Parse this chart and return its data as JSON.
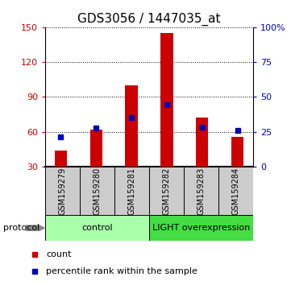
{
  "title": "GDS3056 / 1447035_at",
  "samples": [
    "GSM159279",
    "GSM159280",
    "GSM159281",
    "GSM159282",
    "GSM159283",
    "GSM159284"
  ],
  "red_values": [
    44,
    62,
    100,
    145,
    72,
    56
  ],
  "blue_values": [
    56,
    63,
    72,
    83,
    64,
    61
  ],
  "ylim_left": [
    30,
    150
  ],
  "ylim_right": [
    0,
    100
  ],
  "yticks_left": [
    30,
    60,
    90,
    120,
    150
  ],
  "yticks_right": [
    0,
    25,
    50,
    75,
    100
  ],
  "ytick_labels_right": [
    "0",
    "25",
    "50",
    "75",
    "100%"
  ],
  "groups": [
    {
      "label": "control",
      "start": 0,
      "end": 3,
      "color": "#AAFFAA"
    },
    {
      "label": "LIGHT overexpression",
      "start": 3,
      "end": 6,
      "color": "#44DD44"
    }
  ],
  "protocol_label": "protocol",
  "legend_red": "count",
  "legend_blue": "percentile rank within the sample",
  "red_color": "#CC0000",
  "blue_color": "#0000BB",
  "bar_width": 0.35,
  "title_fontsize": 11,
  "tick_fontsize": 8,
  "label_fontsize": 7,
  "proto_fontsize": 8,
  "legend_fontsize": 8
}
